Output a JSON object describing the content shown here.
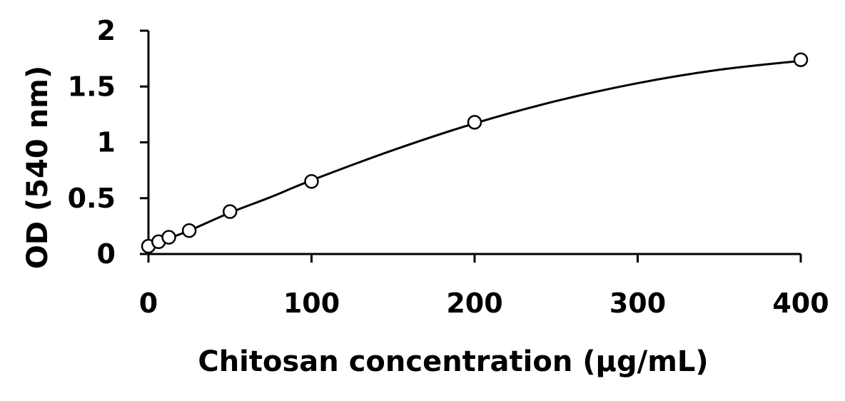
{
  "chart_data": {
    "type": "scatter",
    "xlabel": "Chitosan concentration (µg/mL)",
    "ylabel": "OD (540 nm)",
    "xlim": [
      0,
      400
    ],
    "ylim": [
      0,
      2
    ],
    "x_ticks": [
      0,
      100,
      200,
      300,
      400
    ],
    "y_ticks": [
      0,
      0.5,
      1,
      1.5,
      2
    ],
    "x_tick_labels": [
      "0",
      "100",
      "200",
      "300",
      "400"
    ],
    "y_tick_labels": [
      "0",
      "0.5",
      "1",
      "1.5",
      "2"
    ],
    "grid": false,
    "legend": "none",
    "series": [
      {
        "marker": "open-circle",
        "x": [
          0,
          6.25,
          12.5,
          25,
          50,
          100,
          200,
          400
        ],
        "y": [
          0.07,
          0.11,
          0.15,
          0.21,
          0.38,
          0.65,
          1.18,
          1.74
        ]
      }
    ],
    "fit": {
      "style": "smooth-curve",
      "x": [
        0,
        6.25,
        12.5,
        25,
        50,
        75,
        100,
        150,
        200,
        250,
        300,
        350,
        400
      ],
      "y": [
        0.06,
        0.1,
        0.14,
        0.21,
        0.37,
        0.51,
        0.66,
        0.93,
        1.17,
        1.37,
        1.53,
        1.65,
        1.73
      ]
    }
  }
}
